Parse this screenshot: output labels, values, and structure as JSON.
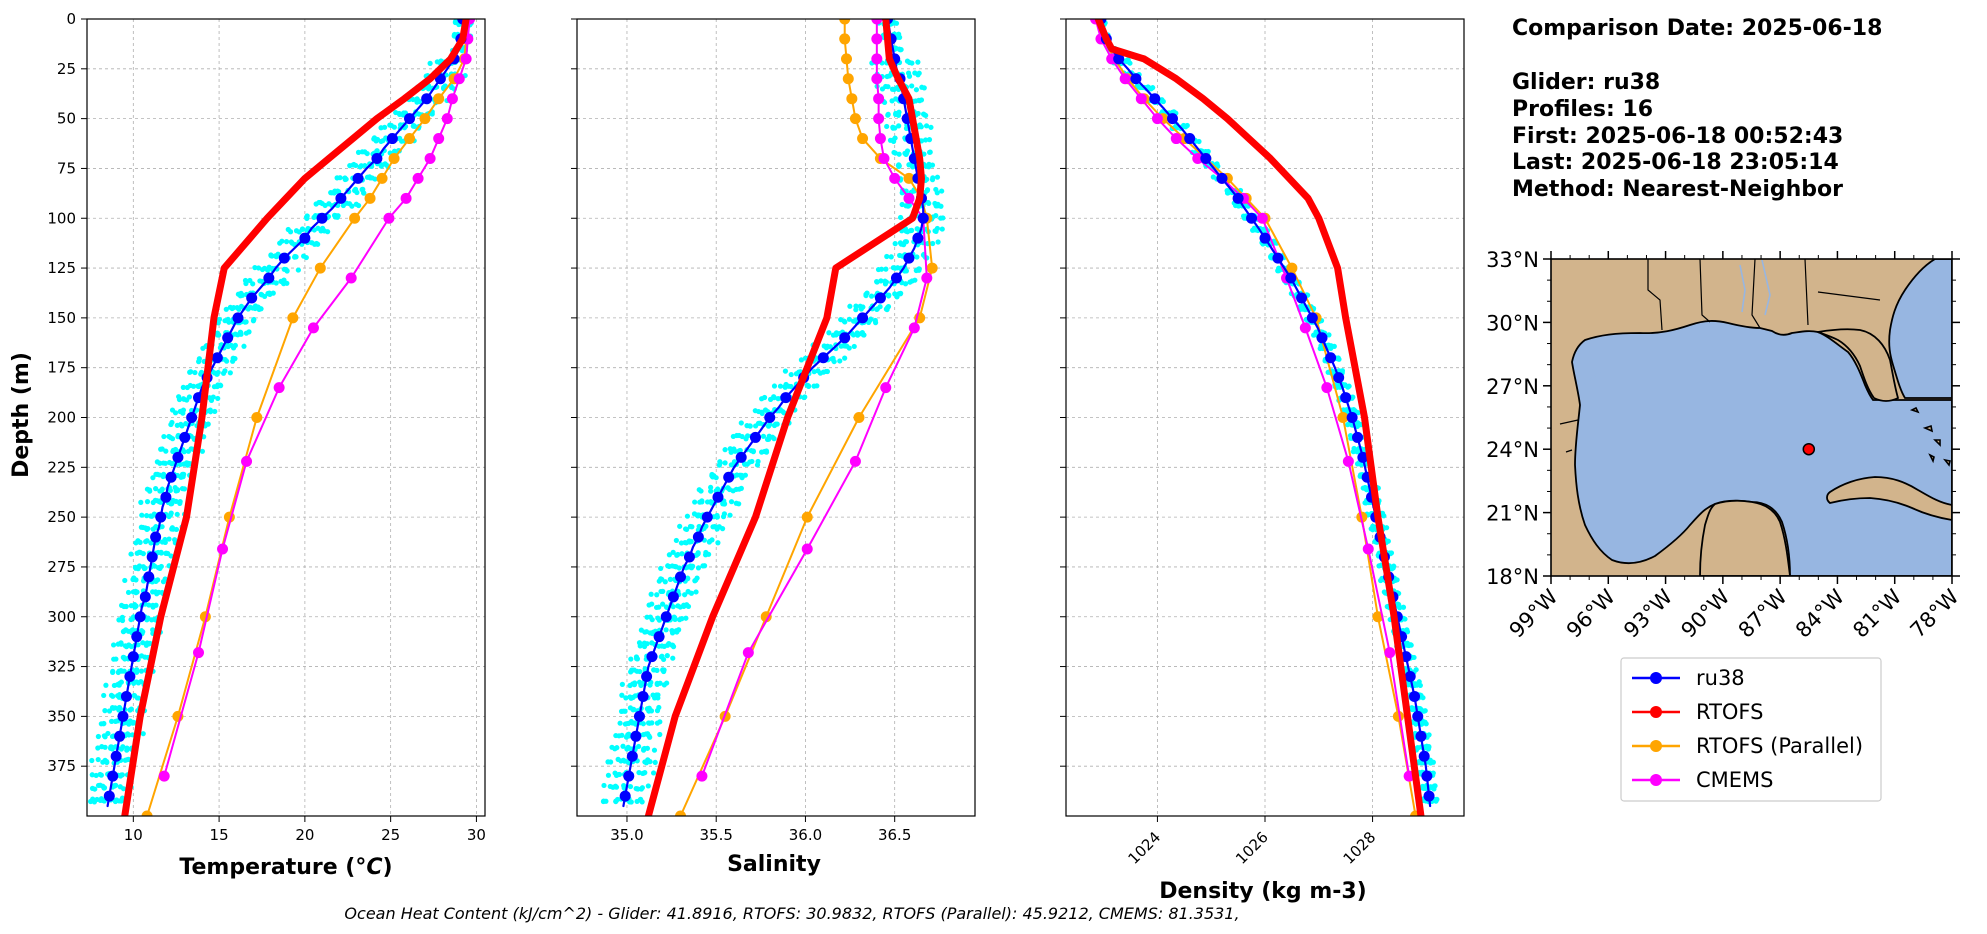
{
  "info": {
    "comparison_date": "Comparison Date: 2025-06-18",
    "glider": "Glider: ru38",
    "profiles": "Profiles: 16",
    "first": "First: 2025-06-18 00:52:43",
    "last": "Last: 2025-06-18 23:05:14",
    "method": "Method: Nearest-Neighbor"
  },
  "footer": "Ocean Heat Content (kJ/cm^2) - Glider: 41.8916,  RTOFS: 30.9832,  RTOFS (Parallel): 45.9212,  CMEMS: 81.3531,",
  "colors": {
    "ru38": "#0000ff",
    "rtofs": "#ff0000",
    "rtofs_parallel": "#ffa500",
    "cmems": "#ff00ff",
    "glider_scatter": "#00ffff",
    "land": "#d2b48c",
    "ocean": "#97b6e1"
  },
  "legend": {
    "entries": [
      {
        "label": "ru38",
        "color": "#0000ff"
      },
      {
        "label": "RTOFS",
        "color": "#ff0000"
      },
      {
        "label": "RTOFS (Parallel)",
        "color": "#ffa500"
      },
      {
        "label": "CMEMS",
        "color": "#ff00ff"
      }
    ]
  },
  "chart_data": [
    {
      "type": "line",
      "xlabel": "Temperature (°C)",
      "ylabel": "Depth (m)",
      "xlim": [
        7.3,
        30.5
      ],
      "ylim": [
        400,
        0
      ],
      "xticks": [
        10,
        15,
        20,
        25,
        30
      ],
      "yticks": [
        0,
        25,
        50,
        75,
        100,
        125,
        150,
        175,
        200,
        225,
        250,
        275,
        300,
        325,
        350,
        375
      ],
      "grid": true,
      "series": [
        {
          "name": "ru38",
          "color": "#0000ff",
          "width": 2.2,
          "marker": true,
          "depth": [
            0,
            5,
            10,
            15,
            20,
            25,
            30,
            35,
            40,
            45,
            50,
            55,
            60,
            65,
            70,
            75,
            80,
            85,
            90,
            95,
            100,
            105,
            110,
            115,
            120,
            125,
            130,
            135,
            140,
            145,
            150,
            155,
            160,
            165,
            170,
            175,
            180,
            185,
            190,
            195,
            200,
            205,
            210,
            215,
            220,
            225,
            230,
            235,
            240,
            245,
            250,
            255,
            260,
            265,
            270,
            275,
            280,
            285,
            290,
            295,
            300,
            305,
            310,
            315,
            320,
            325,
            330,
            335,
            340,
            345,
            350,
            355,
            360,
            365,
            370,
            375,
            380,
            385,
            390,
            395
          ],
          "values": [
            29.2,
            29.2,
            29.1,
            29.0,
            28.7,
            28.3,
            27.9,
            27.5,
            27.1,
            26.6,
            26.1,
            25.6,
            25.1,
            24.6,
            24.2,
            23.6,
            23.1,
            22.6,
            22.1,
            21.6,
            21.0,
            20.4,
            20.0,
            19.4,
            18.8,
            18.3,
            17.9,
            17.4,
            16.9,
            16.5,
            16.1,
            15.8,
            15.5,
            15.2,
            14.9,
            14.6,
            14.3,
            14.0,
            13.8,
            13.6,
            13.4,
            13.2,
            13.0,
            12.8,
            12.6,
            12.4,
            12.2,
            12.0,
            11.9,
            11.7,
            11.6,
            11.5,
            11.3,
            11.2,
            11.1,
            11.0,
            10.9,
            10.8,
            10.7,
            10.5,
            10.4,
            10.3,
            10.2,
            10.1,
            10.0,
            9.9,
            9.8,
            9.7,
            9.6,
            9.5,
            9.4,
            9.3,
            9.2,
            9.1,
            9.0,
            8.9,
            8.8,
            8.7,
            8.6,
            8.5
          ]
        },
        {
          "name": "RTOFS",
          "color": "#ff0000",
          "width": 7,
          "marker": false,
          "depth": [
            0,
            10,
            20,
            30,
            40,
            50,
            60,
            70,
            80,
            90,
            100,
            125,
            150,
            200,
            250,
            300,
            350,
            400
          ],
          "values": [
            29.4,
            29.2,
            28.5,
            27.3,
            25.8,
            24.2,
            22.8,
            21.4,
            20.0,
            18.9,
            17.8,
            15.3,
            14.7,
            14.0,
            13.1,
            11.6,
            10.4,
            9.5
          ]
        },
        {
          "name": "RTOFS (Parallel)",
          "color": "#ffa500",
          "width": 2,
          "marker": true,
          "depth": [
            0,
            10,
            20,
            30,
            40,
            50,
            60,
            70,
            80,
            90,
            100,
            125,
            150,
            200,
            250,
            300,
            350,
            400
          ],
          "values": [
            29.5,
            29.4,
            29.3,
            28.7,
            27.8,
            27.0,
            26.1,
            25.2,
            24.5,
            23.8,
            22.9,
            20.9,
            19.3,
            17.2,
            15.6,
            14.2,
            12.6,
            10.8
          ]
        },
        {
          "name": "CMEMS",
          "color": "#ff00ff",
          "width": 2,
          "marker": true,
          "depth": [
            0,
            10,
            20,
            30,
            40,
            50,
            60,
            70,
            80,
            90,
            100,
            130,
            155,
            185,
            222,
            266,
            318,
            380
          ],
          "values": [
            29.6,
            29.5,
            29.4,
            29.0,
            28.6,
            28.3,
            27.8,
            27.3,
            26.6,
            25.9,
            24.9,
            22.7,
            20.5,
            18.5,
            16.6,
            15.2,
            13.8,
            11.8
          ]
        }
      ]
    },
    {
      "type": "line",
      "xlabel": "Salinity",
      "xlim": [
        34.72,
        36.95
      ],
      "ylim": [
        400,
        0
      ],
      "xticks": [
        35.0,
        35.5,
        36.0,
        36.5
      ],
      "grid": true,
      "series": [
        {
          "name": "ru38",
          "color": "#0000ff",
          "width": 2.2,
          "marker": true,
          "depth": [
            0,
            5,
            10,
            15,
            20,
            25,
            30,
            35,
            40,
            45,
            50,
            55,
            60,
            65,
            70,
            75,
            80,
            85,
            90,
            95,
            100,
            105,
            110,
            115,
            120,
            125,
            130,
            135,
            140,
            145,
            150,
            155,
            160,
            165,
            170,
            175,
            180,
            185,
            190,
            195,
            200,
            205,
            210,
            215,
            220,
            225,
            230,
            235,
            240,
            245,
            250,
            255,
            260,
            265,
            270,
            275,
            280,
            285,
            290,
            295,
            300,
            305,
            310,
            315,
            320,
            325,
            330,
            335,
            340,
            345,
            350,
            355,
            360,
            365,
            370,
            375,
            380,
            385,
            390,
            395
          ],
          "values": [
            36.46,
            36.47,
            36.48,
            36.49,
            36.5,
            36.51,
            36.53,
            36.54,
            36.55,
            36.56,
            36.57,
            36.58,
            36.59,
            36.6,
            36.61,
            36.62,
            36.63,
            36.64,
            36.65,
            36.66,
            36.66,
            36.65,
            36.63,
            36.61,
            36.58,
            36.55,
            36.51,
            36.47,
            36.42,
            36.37,
            36.32,
            36.27,
            36.22,
            36.16,
            36.1,
            36.04,
            35.99,
            35.94,
            35.89,
            35.85,
            35.8,
            35.76,
            35.72,
            35.68,
            35.64,
            35.6,
            35.57,
            35.54,
            35.51,
            35.48,
            35.45,
            35.42,
            35.4,
            35.37,
            35.35,
            35.32,
            35.3,
            35.28,
            35.26,
            35.24,
            35.22,
            35.2,
            35.18,
            35.16,
            35.14,
            35.12,
            35.11,
            35.1,
            35.09,
            35.08,
            35.07,
            35.06,
            35.05,
            35.04,
            35.03,
            35.02,
            35.01,
            35.0,
            34.99,
            34.98
          ]
        },
        {
          "name": "RTOFS",
          "color": "#ff0000",
          "width": 7,
          "marker": false,
          "depth": [
            0,
            10,
            20,
            30,
            40,
            50,
            60,
            70,
            80,
            90,
            100,
            125,
            150,
            200,
            250,
            300,
            350,
            400
          ],
          "values": [
            36.45,
            36.46,
            36.47,
            36.52,
            36.58,
            36.6,
            36.62,
            36.64,
            36.65,
            36.64,
            36.6,
            36.17,
            36.12,
            35.9,
            35.72,
            35.48,
            35.27,
            35.12
          ]
        },
        {
          "name": "RTOFS (Parallel)",
          "color": "#ffa500",
          "width": 2,
          "marker": true,
          "depth": [
            0,
            10,
            20,
            30,
            40,
            50,
            60,
            70,
            80,
            90,
            100,
            125,
            150,
            200,
            250,
            300,
            350,
            400
          ],
          "values": [
            36.22,
            36.22,
            36.23,
            36.24,
            36.26,
            36.28,
            36.32,
            36.42,
            36.58,
            36.65,
            36.68,
            36.71,
            36.64,
            36.3,
            36.01,
            35.78,
            35.55,
            35.3
          ]
        },
        {
          "name": "CMEMS",
          "color": "#ff00ff",
          "width": 2,
          "marker": true,
          "depth": [
            0,
            10,
            20,
            30,
            40,
            50,
            60,
            70,
            80,
            90,
            100,
            130,
            155,
            185,
            222,
            266,
            318,
            380
          ],
          "values": [
            36.4,
            36.4,
            36.4,
            36.4,
            36.41,
            36.41,
            36.42,
            36.44,
            36.5,
            36.58,
            36.66,
            36.68,
            36.61,
            36.45,
            36.28,
            36.01,
            35.68,
            35.42
          ]
        }
      ]
    },
    {
      "type": "line",
      "xlabel": "Density (kg m-3)",
      "xlim": [
        1022.3,
        1029.7
      ],
      "ylim": [
        400,
        0
      ],
      "xticks": [
        1024,
        1026,
        1028
      ],
      "grid": true,
      "series": [
        {
          "name": "ru38",
          "color": "#0000ff",
          "width": 2.2,
          "marker": true,
          "depth": [
            0,
            5,
            10,
            15,
            20,
            25,
            30,
            35,
            40,
            45,
            50,
            55,
            60,
            65,
            70,
            75,
            80,
            85,
            90,
            95,
            100,
            105,
            110,
            115,
            120,
            125,
            130,
            135,
            140,
            145,
            150,
            155,
            160,
            165,
            170,
            175,
            180,
            185,
            190,
            195,
            200,
            205,
            210,
            215,
            220,
            225,
            230,
            235,
            240,
            245,
            250,
            255,
            260,
            265,
            270,
            275,
            280,
            285,
            290,
            295,
            300,
            305,
            310,
            315,
            320,
            325,
            330,
            335,
            340,
            345,
            350,
            355,
            360,
            365,
            370,
            375,
            380,
            385,
            390,
            395
          ],
          "values": [
            1022.95,
            1022.98,
            1023.05,
            1023.15,
            1023.28,
            1023.45,
            1023.6,
            1023.78,
            1023.95,
            1024.12,
            1024.28,
            1024.45,
            1024.6,
            1024.75,
            1024.9,
            1025.05,
            1025.2,
            1025.35,
            1025.5,
            1025.62,
            1025.75,
            1025.88,
            1026.0,
            1026.12,
            1026.24,
            1026.36,
            1026.48,
            1026.58,
            1026.68,
            1026.78,
            1026.88,
            1026.98,
            1027.06,
            1027.14,
            1027.22,
            1027.3,
            1027.37,
            1027.44,
            1027.5,
            1027.56,
            1027.62,
            1027.67,
            1027.72,
            1027.77,
            1027.82,
            1027.86,
            1027.9,
            1027.94,
            1027.98,
            1028.02,
            1028.06,
            1028.1,
            1028.14,
            1028.18,
            1028.22,
            1028.26,
            1028.3,
            1028.34,
            1028.38,
            1028.42,
            1028.46,
            1028.5,
            1028.54,
            1028.58,
            1028.62,
            1028.66,
            1028.7,
            1028.74,
            1028.78,
            1028.81,
            1028.84,
            1028.87,
            1028.9,
            1028.93,
            1028.96,
            1028.99,
            1029.01,
            1029.03,
            1029.05,
            1029.07
          ]
        },
        {
          "name": "RTOFS",
          "color": "#ff0000",
          "width": 7,
          "marker": false,
          "depth": [
            0,
            10,
            15,
            20,
            30,
            40,
            50,
            60,
            70,
            80,
            90,
            100,
            125,
            150,
            200,
            250,
            300,
            350,
            400
          ],
          "values": [
            1022.9,
            1023.05,
            1023.15,
            1023.75,
            1024.35,
            1024.85,
            1025.3,
            1025.7,
            1026.1,
            1026.45,
            1026.8,
            1027.0,
            1027.35,
            1027.5,
            1027.85,
            1028.1,
            1028.4,
            1028.65,
            1028.9
          ]
        },
        {
          "name": "RTOFS (Parallel)",
          "color": "#ffa500",
          "width": 2,
          "marker": true,
          "depth": [
            0,
            10,
            20,
            30,
            40,
            50,
            60,
            70,
            80,
            90,
            100,
            125,
            150,
            200,
            250,
            300,
            350,
            400
          ],
          "values": [
            1022.9,
            1023.0,
            1023.2,
            1023.45,
            1023.75,
            1024.1,
            1024.5,
            1024.9,
            1025.3,
            1025.65,
            1026.0,
            1026.5,
            1026.95,
            1027.45,
            1027.8,
            1028.1,
            1028.48,
            1028.8
          ]
        },
        {
          "name": "CMEMS",
          "color": "#ff00ff",
          "width": 2,
          "marker": true,
          "depth": [
            0,
            10,
            20,
            30,
            40,
            50,
            60,
            70,
            80,
            90,
            100,
            130,
            155,
            185,
            222,
            266,
            318,
            380
          ],
          "values": [
            1022.85,
            1022.95,
            1023.15,
            1023.4,
            1023.7,
            1024.0,
            1024.35,
            1024.75,
            1025.2,
            1025.6,
            1025.95,
            1026.4,
            1026.75,
            1027.15,
            1027.55,
            1027.92,
            1028.32,
            1028.68
          ]
        }
      ]
    },
    {
      "type": "map",
      "lat_ticks": [
        "33°N",
        "30°N",
        "27°N",
        "24°N",
        "21°N",
        "18°N"
      ],
      "lon_ticks": [
        "99°W",
        "96°W",
        "93°W",
        "90°W",
        "87°W",
        "84°W",
        "81°W",
        "78°W"
      ],
      "extent": {
        "lon_min": -99,
        "lon_max": -78,
        "lat_min": 18,
        "lat_max": 33
      },
      "glider_location": {
        "lon": -85.5,
        "lat": 24.0
      }
    }
  ]
}
